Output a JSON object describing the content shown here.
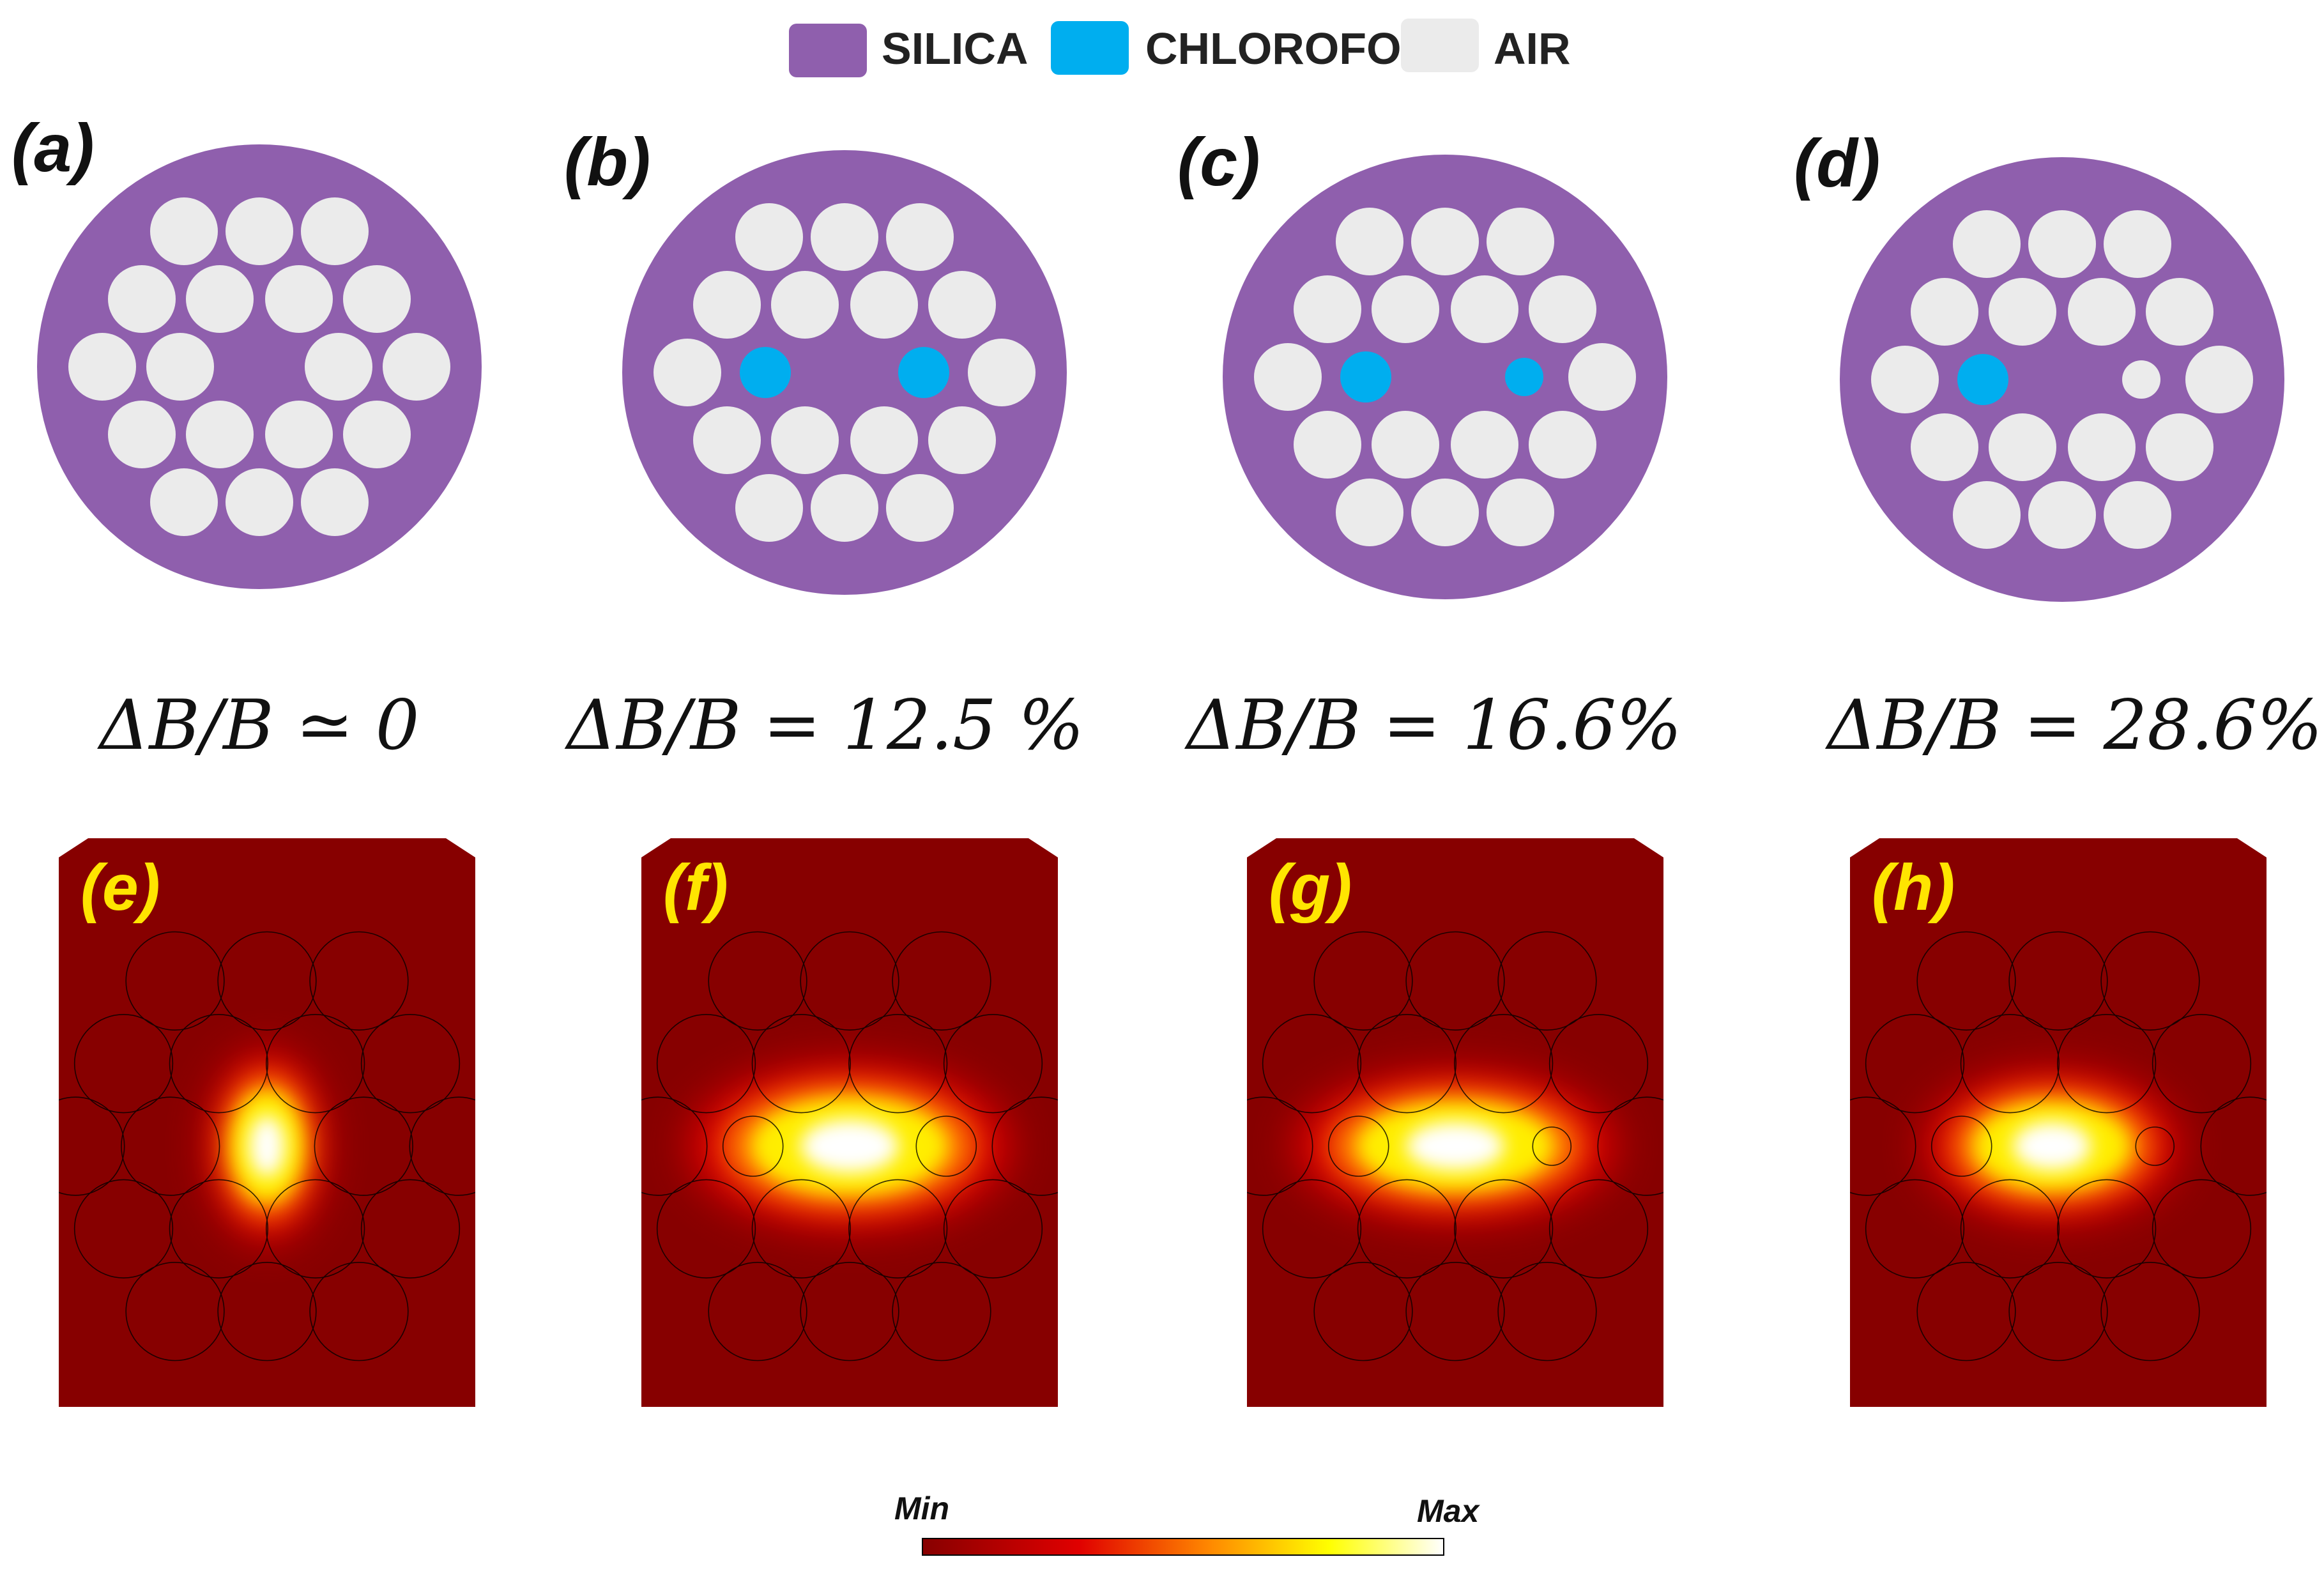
{
  "colors": {
    "silica": "#8f5fad",
    "chloroform": "#00aeef",
    "air": "#ebebeb",
    "field_bg": "#870000",
    "panel_label_map": "#ffe500"
  },
  "legend": {
    "silica": "SILICA",
    "chloroform": "CHLOROFORM",
    "air": "AIR"
  },
  "panels": [
    {
      "label": "(a)",
      "formula": "ΔB/B ≃ 0",
      "chloroform_holes": [],
      "small_air_holes": []
    },
    {
      "label": "(b)",
      "formula": "ΔB/B = 12.5 %",
      "chloroform_holes": [
        {
          "pos": "left",
          "size": "large"
        },
        {
          "pos": "right",
          "size": "large"
        }
      ],
      "small_air_holes": []
    },
    {
      "label": "(c)",
      "formula": "ΔB/B = 16.6%",
      "chloroform_holes": [
        {
          "pos": "left",
          "size": "large"
        },
        {
          "pos": "right",
          "size": "small"
        }
      ],
      "small_air_holes": []
    },
    {
      "label": "(d)",
      "formula": "ΔB/B = 28.6%",
      "chloroform_holes": [
        {
          "pos": "left",
          "size": "large"
        }
      ],
      "small_air_holes": [
        {
          "pos": "right",
          "size": "small"
        }
      ]
    }
  ],
  "field_maps": [
    {
      "label": "(e)"
    },
    {
      "label": "(f)"
    },
    {
      "label": "(g)"
    },
    {
      "label": "(h)"
    }
  ],
  "colorbar": {
    "min_label": "Min",
    "max_label": "Max"
  }
}
